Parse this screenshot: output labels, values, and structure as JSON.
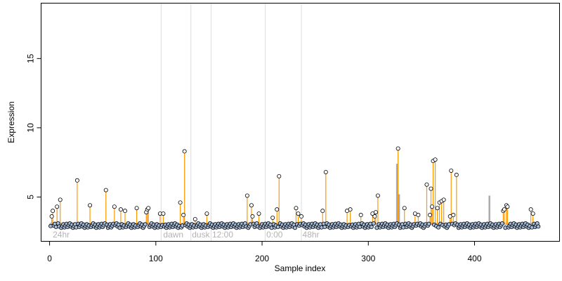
{
  "chart_data": {
    "type": "scatter",
    "title": "",
    "xlabel": "Sample index",
    "ylabel": "Expression",
    "xlim": [
      -8,
      480
    ],
    "ylim": [
      1.8,
      19
    ],
    "x_ticks": [
      0,
      100,
      200,
      300,
      400
    ],
    "y_ticks": [
      5,
      10,
      15
    ],
    "baseline": 3.0,
    "region_separators": [
      105,
      133,
      152,
      203,
      237
    ],
    "regions": [
      {
        "label": "24hr",
        "x": 3
      },
      {
        "label": "dawn",
        "x": 107
      },
      {
        "label": "dusk",
        "x": 134
      },
      {
        "label": "12:00",
        "x": 153
      },
      {
        "label": "0:00",
        "x": 204
      },
      {
        "label": "48hr",
        "x": 238
      }
    ],
    "colors": {
      "points": "#a6bddb",
      "stems_orange": "#ff9900",
      "stems_grey": "#aaaaaa",
      "separators": "#dddddd"
    },
    "series": [
      {
        "values": [
          [
            2,
            3.6
          ],
          [
            3,
            4.0
          ],
          [
            7,
            4.3
          ],
          [
            10,
            4.8
          ],
          [
            26,
            6.2
          ],
          [
            38,
            4.4
          ],
          [
            53,
            5.5
          ],
          [
            61,
            4.3
          ],
          [
            67,
            4.1
          ],
          [
            71,
            4.0
          ],
          [
            82,
            4.2
          ],
          [
            91,
            3.9
          ],
          [
            92,
            4.1
          ],
          [
            93,
            4.2
          ],
          [
            104,
            3.8
          ],
          [
            107,
            3.8
          ],
          [
            123,
            4.6
          ],
          [
            126,
            3.7
          ],
          [
            127,
            8.3
          ],
          [
            137,
            3.4
          ],
          [
            148,
            3.8
          ],
          [
            186,
            5.1
          ],
          [
            190,
            4.4
          ],
          [
            191,
            3.6
          ],
          [
            197,
            3.8
          ],
          [
            210,
            3.5
          ],
          [
            214,
            4.1
          ],
          [
            216,
            6.5
          ],
          [
            232,
            4.2
          ],
          [
            234,
            3.8
          ],
          [
            237,
            3.6
          ],
          [
            257,
            4.0
          ],
          [
            260,
            6.8
          ],
          [
            280,
            4.0
          ],
          [
            283,
            4.1
          ],
          [
            293,
            3.7
          ],
          [
            304,
            3.8
          ],
          [
            306,
            3.6
          ],
          [
            307,
            3.9
          ],
          [
            309,
            5.1
          ],
          [
            328,
            8.5
          ],
          [
            334,
            4.2
          ],
          [
            344,
            3.8
          ],
          [
            347,
            3.7
          ],
          [
            355,
            5.9
          ],
          [
            358,
            3.7
          ],
          [
            359,
            5.6
          ],
          [
            360,
            4.3
          ],
          [
            361,
            7.6
          ],
          [
            363,
            7.7
          ],
          [
            365,
            4.2
          ],
          [
            367,
            4.6
          ],
          [
            369,
            4.7
          ],
          [
            371,
            4.8
          ],
          [
            377,
            3.6
          ],
          [
            378,
            6.9
          ],
          [
            380,
            3.7
          ],
          [
            383,
            6.6
          ],
          [
            427,
            4.0
          ],
          [
            428,
            4.1
          ],
          [
            430,
            4.4
          ],
          [
            431,
            4.3
          ],
          [
            453,
            4.1
          ],
          [
            455,
            3.8
          ]
        ]
      }
    ],
    "grey_bars": [
      [
        327,
        7.4
      ],
      [
        329,
        5.2
      ],
      [
        414,
        5.1
      ]
    ]
  }
}
